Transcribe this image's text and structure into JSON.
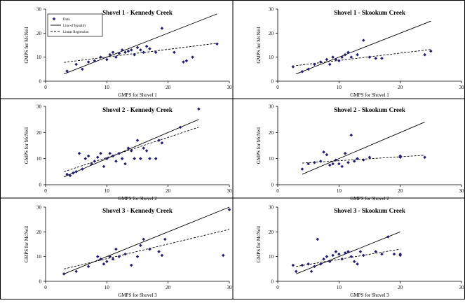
{
  "colors": {
    "marker": "#1f1f7a",
    "line": "#000000",
    "border": "#000000",
    "background": "#ffffff"
  },
  "chart_data": [
    {
      "type": "scatter",
      "title": "Shovel 1 - Kennedy Creek",
      "xlabel": "GMPS for Shovel 1",
      "ylabel": "GMPS for McNeil",
      "xlim": [
        0,
        30
      ],
      "ylim": [
        0,
        30
      ],
      "xticks": [
        "0",
        "10",
        "20",
        "30"
      ],
      "yticks": [
        "0",
        "10",
        "20",
        "30"
      ],
      "legend": {
        "placement": "top-left",
        "entries": [
          "Data",
          "Line of Equality",
          "Linear Regression"
        ]
      },
      "points": [
        [
          3.5,
          4.2
        ],
        [
          5,
          7
        ],
        [
          6,
          5
        ],
        [
          7,
          8
        ],
        [
          8,
          8.5
        ],
        [
          9,
          10
        ],
        [
          10,
          9
        ],
        [
          10.5,
          11
        ],
        [
          11,
          12
        ],
        [
          11.5,
          10
        ],
        [
          12,
          11.5
        ],
        [
          12.5,
          13
        ],
        [
          13,
          12
        ],
        [
          13.5,
          12.5
        ],
        [
          14,
          13
        ],
        [
          14.5,
          11
        ],
        [
          15,
          14
        ],
        [
          15.5,
          13
        ],
        [
          16,
          12
        ],
        [
          16.5,
          14.5
        ],
        [
          17,
          13.5
        ],
        [
          18,
          12
        ],
        [
          19,
          22
        ],
        [
          21,
          12
        ],
        [
          22.5,
          8
        ],
        [
          23,
          8.5
        ],
        [
          24,
          10
        ],
        [
          28,
          15.5
        ]
      ],
      "equality": [
        [
          3,
          3
        ],
        [
          28,
          28
        ]
      ],
      "regression": [
        [
          3,
          7.8
        ],
        [
          28,
          15.8
        ]
      ]
    },
    {
      "type": "scatter",
      "title": "Shovel 1 - Skookum Creek",
      "xlabel": "GMPS for Shovel 1",
      "ylabel": "GMPS for McNeil",
      "xlim": [
        0,
        30
      ],
      "ylim": [
        0,
        30
      ],
      "xticks": [
        "0",
        "10",
        "20",
        "30"
      ],
      "yticks": [
        "0",
        "10",
        "20",
        "30"
      ],
      "points": [
        [
          2.5,
          6
        ],
        [
          4,
          4
        ],
        [
          5,
          5
        ],
        [
          6,
          7
        ],
        [
          7,
          8
        ],
        [
          8,
          9
        ],
        [
          8.5,
          7
        ],
        [
          9,
          10
        ],
        [
          9.5,
          9
        ],
        [
          10,
          8.5
        ],
        [
          10.5,
          10
        ],
        [
          11,
          11
        ],
        [
          11.5,
          12
        ],
        [
          12,
          10
        ],
        [
          13,
          11
        ],
        [
          14,
          17
        ],
        [
          15,
          10
        ],
        [
          16,
          9.5
        ],
        [
          17,
          9.5
        ],
        [
          24,
          11
        ],
        [
          25,
          12.5
        ]
      ],
      "equality": [
        [
          3,
          3
        ],
        [
          25,
          25
        ]
      ],
      "regression": [
        [
          3,
          6.5
        ],
        [
          25,
          13.2
        ]
      ]
    },
    {
      "type": "scatter",
      "title": "Shovel 2 - Kennedy Creek",
      "xlabel": "GMPS for Shovel 2",
      "ylabel": "GMPS for McNeil",
      "xlim": [
        0,
        30
      ],
      "ylim": [
        0,
        30
      ],
      "xticks": [
        "0",
        "10",
        "20",
        "30"
      ],
      "yticks": [
        "0",
        "10",
        "20",
        "30"
      ],
      "points": [
        [
          3.5,
          4
        ],
        [
          4,
          3.5
        ],
        [
          4.5,
          4.5
        ],
        [
          5,
          5
        ],
        [
          5.5,
          12
        ],
        [
          6,
          6
        ],
        [
          6.5,
          10
        ],
        [
          7,
          11
        ],
        [
          7.5,
          8
        ],
        [
          8,
          9
        ],
        [
          8.5,
          10.5
        ],
        [
          9,
          12
        ],
        [
          9.5,
          7
        ],
        [
          10,
          10
        ],
        [
          10.5,
          12
        ],
        [
          11,
          11
        ],
        [
          11.5,
          9
        ],
        [
          12,
          12
        ],
        [
          12.5,
          10
        ],
        [
          13,
          8
        ],
        [
          13.5,
          14
        ],
        [
          14,
          13
        ],
        [
          14.5,
          10
        ],
        [
          15,
          17
        ],
        [
          15.5,
          10
        ],
        [
          16,
          14
        ],
        [
          16.5,
          13
        ],
        [
          17,
          10
        ],
        [
          18,
          10
        ],
        [
          18.5,
          17
        ],
        [
          19,
          16
        ],
        [
          22,
          22
        ],
        [
          25,
          29
        ]
      ],
      "equality": [
        [
          3,
          3
        ],
        [
          25,
          25
        ]
      ],
      "regression": [
        [
          3,
          5
        ],
        [
          25,
          22
        ]
      ]
    },
    {
      "type": "scatter",
      "title": "Shovel 2 - Skookum Creek",
      "xlabel": "GMPS for Shovel 2",
      "ylabel": "GMPS for McNeil",
      "xlim": [
        0,
        30
      ],
      "ylim": [
        0,
        30
      ],
      "xticks": [
        "0",
        "10",
        "20",
        "30"
      ],
      "yticks": [
        "0",
        "10",
        "20",
        "30"
      ],
      "points": [
        [
          4,
          6
        ],
        [
          5,
          8
        ],
        [
          6,
          8.5
        ],
        [
          7,
          9
        ],
        [
          7.5,
          12.5
        ],
        [
          8,
          11.5
        ],
        [
          8.5,
          7.5
        ],
        [
          9,
          8
        ],
        [
          9.5,
          9.5
        ],
        [
          10,
          8
        ],
        [
          10.5,
          7
        ],
        [
          11,
          12
        ],
        [
          11.5,
          8.5
        ],
        [
          12,
          19
        ],
        [
          12.5,
          9
        ],
        [
          13,
          10
        ],
        [
          14,
          9.5
        ],
        [
          15,
          10.5
        ],
        [
          20,
          11
        ],
        [
          20,
          10.5
        ],
        [
          24,
          10.5
        ]
      ],
      "equality": [
        [
          4,
          4
        ],
        [
          24,
          24
        ]
      ],
      "regression": [
        [
          4,
          8.3
        ],
        [
          24,
          11.3
        ]
      ]
    },
    {
      "type": "scatter",
      "title": "Shovel 3 - Kennedy Creek",
      "xlabel": "GMPS for Shovel 3",
      "ylabel": "GMPS for McNeil",
      "xlim": [
        0,
        30
      ],
      "ylim": [
        0,
        30
      ],
      "xticks": [
        "0",
        "10",
        "20",
        "30"
      ],
      "yticks": [
        "0",
        "10",
        "20",
        "30"
      ],
      "points": [
        [
          3,
          3
        ],
        [
          5,
          4
        ],
        [
          7,
          6
        ],
        [
          8.5,
          10
        ],
        [
          9,
          9
        ],
        [
          9.5,
          7
        ],
        [
          10,
          8
        ],
        [
          10.5,
          10
        ],
        [
          11,
          9
        ],
        [
          11.5,
          13
        ],
        [
          12,
          10
        ],
        [
          13,
          11
        ],
        [
          14,
          6.5
        ],
        [
          15,
          10
        ],
        [
          15.5,
          14.5
        ],
        [
          16,
          17
        ],
        [
          17,
          13
        ],
        [
          18.5,
          12
        ],
        [
          19,
          10.5
        ],
        [
          19.5,
          17
        ],
        [
          29,
          10.5
        ],
        [
          30,
          29
        ]
      ],
      "equality": [
        [
          3,
          3
        ],
        [
          30,
          30
        ]
      ],
      "regression": [
        [
          3,
          5
        ],
        [
          30,
          21
        ]
      ]
    },
    {
      "type": "scatter",
      "title": "Shovel 3 - Skookum Creek",
      "xlabel": "GMPS for Shovel 3",
      "ylabel": "GMPS for McNeil",
      "xlim": [
        0,
        30
      ],
      "ylim": [
        0,
        30
      ],
      "xticks": [
        "0",
        "10",
        "20",
        "30"
      ],
      "yticks": [
        "0",
        "10",
        "20",
        "30"
      ],
      "points": [
        [
          2.5,
          6.5
        ],
        [
          3,
          4
        ],
        [
          4,
          6.5
        ],
        [
          5,
          7
        ],
        [
          5.5,
          4
        ],
        [
          6,
          6
        ],
        [
          6.5,
          17
        ],
        [
          7,
          7
        ],
        [
          7.5,
          9
        ],
        [
          8,
          10
        ],
        [
          8.5,
          8
        ],
        [
          9,
          10.5
        ],
        [
          9.5,
          12
        ],
        [
          10,
          11
        ],
        [
          10.5,
          9
        ],
        [
          11,
          11.5
        ],
        [
          11.5,
          12
        ],
        [
          12,
          10
        ],
        [
          12.5,
          8
        ],
        [
          13,
          7
        ],
        [
          13.5,
          12
        ],
        [
          14,
          10.5
        ],
        [
          16,
          12
        ],
        [
          17,
          11
        ],
        [
          18,
          18
        ],
        [
          19,
          11
        ],
        [
          20,
          10.5
        ],
        [
          20,
          11
        ]
      ],
      "equality": [
        [
          3,
          3
        ],
        [
          20,
          20
        ]
      ],
      "regression": [
        [
          3,
          6
        ],
        [
          20,
          13
        ]
      ]
    }
  ]
}
